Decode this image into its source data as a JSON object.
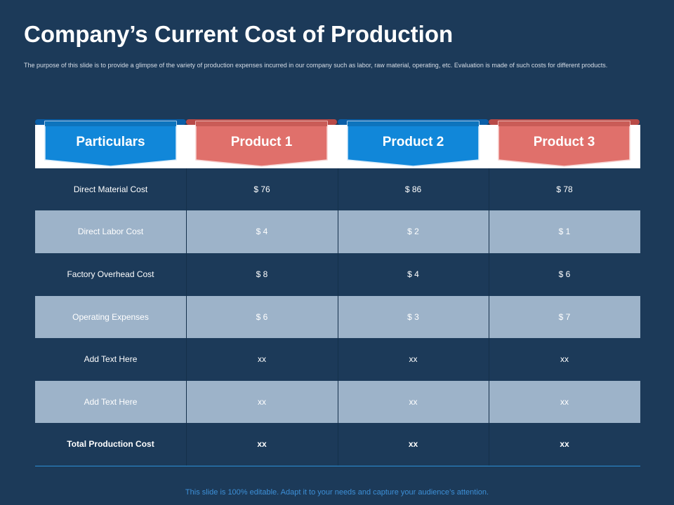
{
  "slide": {
    "title": "Company’s Current Cost of Production",
    "subtitle": "The purpose of this slide is to provide a glimpse of the variety of production expenses incurred in our company such as labor, raw material, operating, etc. Evaluation is made of such costs for different products.",
    "footer": "This slide is 100% editable. Adapt it to your needs and capture your audience’s attention."
  },
  "table": {
    "headers": [
      "Particulars",
      "Product 1",
      "Product 2",
      "Product 3"
    ],
    "rows": [
      [
        "Direct Material Cost",
        "$ 76",
        "$ 86",
        "$ 78"
      ],
      [
        "Direct Labor Cost",
        "$ 4",
        "$ 2",
        "$ 1"
      ],
      [
        "Factory Overhead Cost",
        "$ 8",
        "$ 4",
        "$ 6"
      ],
      [
        "Operating Expenses",
        "$ 6",
        "$ 3",
        "$ 7"
      ],
      [
        "Add Text Here",
        "xx",
        "xx",
        "xx"
      ],
      [
        "Add Text Here",
        "xx",
        "xx",
        "xx"
      ],
      [
        "Total Production Cost",
        "xx",
        "xx",
        "xx"
      ]
    ]
  },
  "colors": {
    "background": "#1c3a59",
    "header_blue": "#1187d9",
    "header_red": "#e0706b",
    "row_light": "#9db3c9",
    "accent_line": "#2d8fd6"
  }
}
